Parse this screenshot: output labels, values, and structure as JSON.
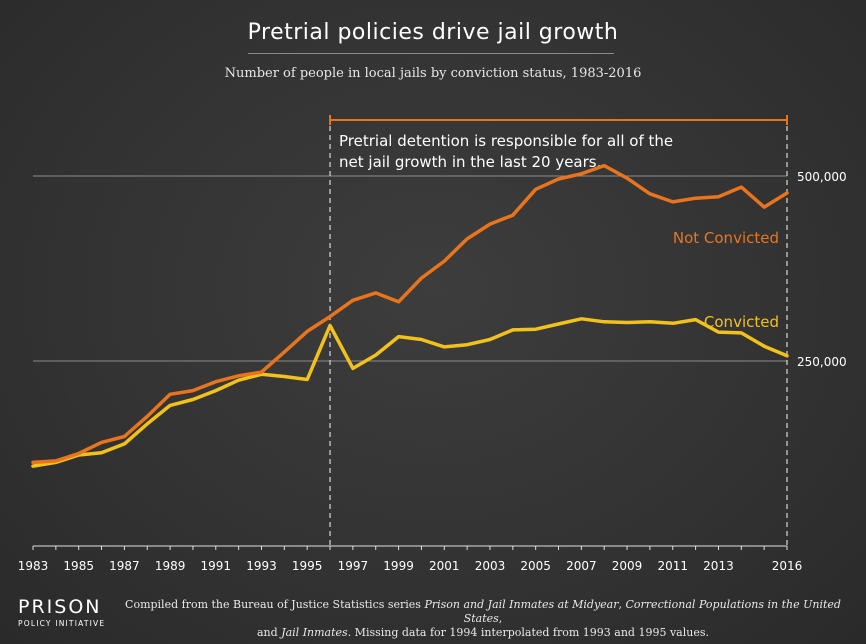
{
  "chart_data": {
    "type": "line",
    "title": "Pretrial policies drive jail growth",
    "subtitle": "Number of people in local jails by conviction status, 1983-2016",
    "x": [
      1983,
      1984,
      1985,
      1986,
      1987,
      1988,
      1989,
      1990,
      1991,
      1992,
      1993,
      1994,
      1995,
      1996,
      1997,
      1998,
      1999,
      2000,
      2001,
      2002,
      2003,
      2004,
      2005,
      2006,
      2007,
      2008,
      2009,
      2010,
      2011,
      2012,
      2013,
      2014,
      2015,
      2016
    ],
    "xlim": [
      1983,
      2016
    ],
    "ylim": [
      0,
      540000
    ],
    "x_tick_labels": [
      "1983",
      "1985",
      "1987",
      "1989",
      "1991",
      "1993",
      "1995",
      "1997",
      "1999",
      "2001",
      "2003",
      "2005",
      "2007",
      "2009",
      "2011",
      "2013",
      "2016"
    ],
    "y_ticks": [
      {
        "value": 250000,
        "label": "250,000"
      },
      {
        "value": 500000,
        "label": "500,000"
      }
    ],
    "series": [
      {
        "name": "Not Convicted",
        "color": "#e8751e",
        "values": [
          113000,
          115000,
          125000,
          140000,
          148000,
          175000,
          205000,
          210000,
          222000,
          230000,
          235000,
          262000,
          290000,
          310000,
          332000,
          342000,
          330000,
          362000,
          385000,
          415000,
          435000,
          447000,
          482000,
          496000,
          503000,
          514000,
          497000,
          476000,
          465000,
          470000,
          472000,
          485000,
          458000,
          477000
        ]
      },
      {
        "name": "Convicted",
        "color": "#f2c21b",
        "values": [
          108000,
          113000,
          123000,
          126000,
          138000,
          165000,
          190000,
          198000,
          210000,
          224000,
          232000,
          229000,
          225000,
          298000,
          240000,
          258000,
          283000,
          279000,
          269000,
          272000,
          279000,
          292000,
          293000,
          300000,
          307000,
          303000,
          302000,
          303000,
          301000,
          306000,
          289000,
          288000,
          270000,
          257000
        ]
      }
    ],
    "annotation": {
      "start_year": 1996,
      "end_year": 2016,
      "line1": "Pretrial detention is responsible for all of the",
      "line2": "net jail growth in the last 20 years."
    }
  },
  "footer": {
    "logo_line1": "PRISON",
    "logo_line2": "POLICY INITIATIVE",
    "source_prefix": "Compiled from the Bureau of Justice Statistics series ",
    "source_series1": "Prison and Jail Inmates at Midyear",
    "source_sep1": ", ",
    "source_series2": "Correctional Populations in the United States",
    "source_sep2": ",",
    "source_and": "and ",
    "source_series3": "Jail Inmates",
    "source_suffix": ". Missing data for 1994 interpolated from 1993 and 1995 values."
  }
}
